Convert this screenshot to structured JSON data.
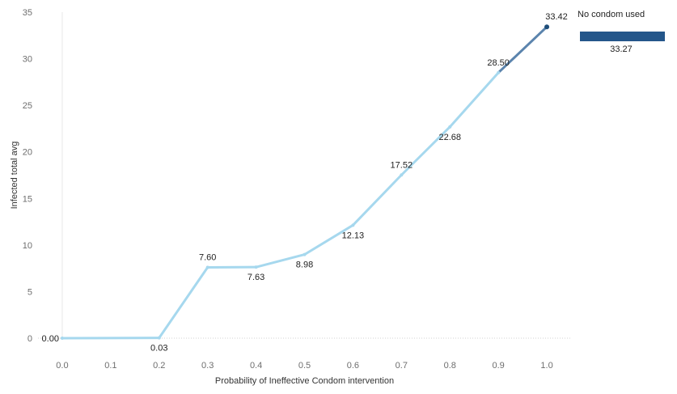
{
  "chart_data": {
    "type": "line",
    "xlabel": "Probability of Ineffective Condom intervention",
    "ylabel": "Infected total avg",
    "xlim": [
      -0.05,
      1.05
    ],
    "ylim": [
      0,
      35
    ],
    "x_ticks": [
      "0.0",
      "0.1",
      "0.2",
      "0.3",
      "0.4",
      "0.5",
      "0.6",
      "0.7",
      "0.8",
      "0.9",
      "1.0"
    ],
    "y_ticks": [
      "0",
      "5",
      "10",
      "15",
      "20",
      "25",
      "30",
      "35"
    ],
    "grid": false,
    "series": [
      {
        "x": [
          0.0,
          0.2,
          0.3,
          0.4,
          0.5,
          0.6,
          0.7,
          0.8,
          0.9,
          1.0
        ],
        "values": [
          0.0,
          0.03,
          7.6,
          7.63,
          8.98,
          12.13,
          17.52,
          22.68,
          28.5,
          33.42
        ],
        "labels": [
          "0.00",
          "0.03",
          "7.60",
          "7.63",
          "8.98",
          "12.13",
          "17.52",
          "22.68",
          "28.50",
          "33.42"
        ],
        "label_side": [
          "left",
          "below",
          "above",
          "below",
          "below",
          "below",
          "above",
          "below",
          "above",
          "above"
        ],
        "color": "#a6d8ee",
        "last_segment_color": "#5b84ad",
        "last_point_color": "#1f4e7a"
      }
    ],
    "reference": {
      "title": "No condom used",
      "value": 33.27,
      "label": "33.27",
      "color": "#24568a"
    }
  }
}
